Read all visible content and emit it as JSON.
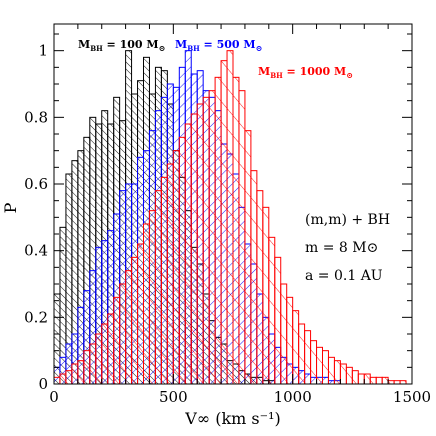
{
  "chart_data": {
    "type": "histogram",
    "xlabel": "V∞ (km s⁻¹)",
    "ylabel": "P",
    "xlim": [
      0,
      1500
    ],
    "ylim": [
      0,
      1.08
    ],
    "xticks": [
      0,
      500,
      1000,
      1500
    ],
    "xtick_labels": [
      "0",
      "500",
      "1000",
      "1500"
    ],
    "yticks": [
      0,
      0.2,
      0.4,
      0.6,
      0.8,
      1
    ],
    "ytick_labels": [
      "0",
      "0.2",
      "0.4",
      "0.6",
      "0.8",
      "1"
    ],
    "bin_width": 25,
    "bin_start": 0,
    "grid": false,
    "series": [
      {
        "name": "M_BH = 100 M⊙",
        "color": "#000000",
        "hatch": "forward",
        "values": [
          0.27,
          0.47,
          0.63,
          0.67,
          0.7,
          0.74,
          0.8,
          0.78,
          0.82,
          0.78,
          0.86,
          0.79,
          1.0,
          0.87,
          0.91,
          0.98,
          0.87,
          0.95,
          0.94,
          0.84,
          0.7,
          0.62,
          0.52,
          0.41,
          0.36,
          0.27,
          0.19,
          0.14,
          0.12,
          0.07,
          0.06,
          0.04,
          0.03,
          0.02,
          0.02,
          0.01,
          0.01
        ]
      },
      {
        "name": "M_BH = 500 M⊙",
        "color": "#0000ff",
        "hatch": "backward",
        "values": [
          0.05,
          0.08,
          0.12,
          0.15,
          0.23,
          0.28,
          0.34,
          0.41,
          0.43,
          0.46,
          0.51,
          0.58,
          0.6,
          0.6,
          0.68,
          0.7,
          0.76,
          0.82,
          0.86,
          0.9,
          0.89,
          0.95,
          1.0,
          0.93,
          0.94,
          0.88,
          0.86,
          0.82,
          0.72,
          0.69,
          0.63,
          0.53,
          0.42,
          0.36,
          0.27,
          0.2,
          0.15,
          0.11,
          0.08,
          0.06,
          0.05,
          0.04,
          0.03,
          0.02,
          0.02,
          0.02,
          0.01,
          0.01
        ]
      },
      {
        "name": "M_BH = 1000 M⊙",
        "color": "#ff0000",
        "hatch": "forward",
        "values": [
          0.02,
          0.03,
          0.04,
          0.06,
          0.07,
          0.1,
          0.12,
          0.15,
          0.18,
          0.21,
          0.26,
          0.3,
          0.34,
          0.38,
          0.42,
          0.48,
          0.52,
          0.58,
          0.62,
          0.66,
          0.7,
          0.74,
          0.78,
          0.81,
          0.84,
          0.86,
          0.88,
          0.92,
          0.97,
          1.0,
          0.92,
          0.88,
          0.76,
          0.64,
          0.58,
          0.53,
          0.44,
          0.38,
          0.3,
          0.26,
          0.22,
          0.18,
          0.16,
          0.13,
          0.11,
          0.1,
          0.08,
          0.07,
          0.06,
          0.05,
          0.04,
          0.03,
          0.03,
          0.02,
          0.02,
          0.02,
          0.01,
          0.01,
          0.01
        ]
      }
    ],
    "legend": [
      {
        "prefix": "M",
        "sub": "BH",
        "text": " = 100 M",
        "sun": "⊙",
        "color": "#000000"
      },
      {
        "prefix": "M",
        "sub": "BH",
        "text": " = 500 M",
        "sun": "⊙",
        "color": "#0000ff"
      },
      {
        "prefix": "M",
        "sub": "BH",
        "text": " = 1000 M",
        "sun": "⊙",
        "color": "#ff0000"
      }
    ],
    "annotations": [
      "(m,m) + BH",
      "m = 8 M⊙",
      "a = 0.1 AU"
    ]
  }
}
